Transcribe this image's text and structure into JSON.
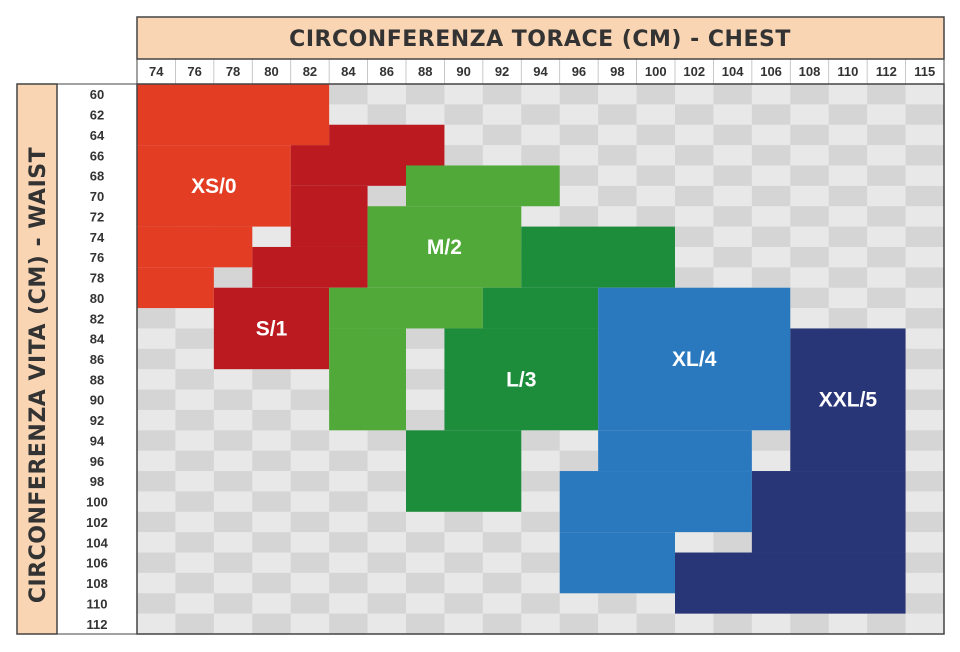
{
  "chart_data": {
    "type": "heatmap",
    "title": "",
    "xlabel": "CIRCONFERENZA TORACE (CM) - CHEST",
    "ylabel": "CIRCONFERENZA VITA (CM) - WAIST",
    "x_ticks": [
      "74",
      "76",
      "78",
      "80",
      "82",
      "84",
      "86",
      "88",
      "90",
      "92",
      "94",
      "96",
      "98",
      "100",
      "102",
      "104",
      "106",
      "108",
      "110",
      "112",
      "115"
    ],
    "y_ticks": [
      "60",
      "62",
      "64",
      "66",
      "68",
      "70",
      "72",
      "74",
      "76",
      "78",
      "80",
      "82",
      "84",
      "86",
      "88",
      "90",
      "92",
      "94",
      "96",
      "98",
      "100",
      "102",
      "104",
      "106",
      "108",
      "110",
      "112"
    ],
    "grid": true,
    "colors": {
      "header_bg": "#f9d5b3",
      "grid_light": "#e8e8e8",
      "grid_dark": "#d5d5d5",
      "border": "#444444"
    },
    "sizes": [
      {
        "name": "XS/0",
        "color": "#e33d24",
        "steps": [
          {
            "chest_from": "74",
            "chest_to": "84",
            "waist_from": "60",
            "waist_to": "66"
          },
          {
            "chest_from": "74",
            "chest_to": "82",
            "waist_from": "66",
            "waist_to": "74"
          },
          {
            "chest_from": "74",
            "chest_to": "80",
            "waist_from": "74",
            "waist_to": "78"
          },
          {
            "chest_from": "74",
            "chest_to": "78",
            "waist_from": "78",
            "waist_to": "82"
          }
        ]
      },
      {
        "name": "S/1",
        "color": "#bb1a21",
        "steps": [
          {
            "chest_from": "84",
            "chest_to": "90",
            "waist_from": "64",
            "waist_to": "68"
          },
          {
            "chest_from": "82",
            "chest_to": "88",
            "waist_from": "66",
            "waist_to": "70"
          },
          {
            "chest_from": "82",
            "chest_to": "86",
            "waist_from": "70",
            "waist_to": "76"
          },
          {
            "chest_from": "80",
            "chest_to": "86",
            "waist_from": "76",
            "waist_to": "80"
          },
          {
            "chest_from": "78",
            "chest_to": "84",
            "waist_from": "80",
            "waist_to": "88"
          }
        ]
      },
      {
        "name": "M/2",
        "color": "#50a938",
        "steps": [
          {
            "chest_from": "88",
            "chest_to": "96",
            "waist_from": "68",
            "waist_to": "72"
          },
          {
            "chest_from": "86",
            "chest_to": "94",
            "waist_from": "72",
            "waist_to": "80"
          },
          {
            "chest_from": "84",
            "chest_to": "92",
            "waist_from": "80",
            "waist_to": "84"
          },
          {
            "chest_from": "84",
            "chest_to": "88",
            "waist_from": "84",
            "waist_to": "94"
          }
        ]
      },
      {
        "name": "L/3",
        "color": "#1d8c3b",
        "steps": [
          {
            "chest_from": "94",
            "chest_to": "102",
            "waist_from": "74",
            "waist_to": "80"
          },
          {
            "chest_from": "92",
            "chest_to": "98",
            "waist_from": "80",
            "waist_to": "84"
          },
          {
            "chest_from": "90",
            "chest_to": "98",
            "waist_from": "84",
            "waist_to": "94"
          },
          {
            "chest_from": "88",
            "chest_to": "94",
            "waist_from": "94",
            "waist_to": "102"
          }
        ]
      },
      {
        "name": "XL/4",
        "color": "#2a79bf",
        "steps": [
          {
            "chest_from": "98",
            "chest_to": "108",
            "waist_from": "80",
            "waist_to": "94"
          },
          {
            "chest_from": "98",
            "chest_to": "106",
            "waist_from": "94",
            "waist_to": "98"
          },
          {
            "chest_from": "96",
            "chest_to": "106",
            "waist_from": "98",
            "waist_to": "104"
          },
          {
            "chest_from": "96",
            "chest_to": "102",
            "waist_from": "104",
            "waist_to": "110"
          }
        ]
      },
      {
        "name": "XXL/5",
        "color": "#283577",
        "steps": [
          {
            "chest_from": "108",
            "chest_to": "115",
            "waist_from": "84",
            "waist_to": "98"
          },
          {
            "chest_from": "106",
            "chest_to": "115",
            "waist_from": "98",
            "waist_to": "106"
          },
          {
            "chest_from": "102",
            "chest_to": "115",
            "waist_from": "106",
            "waist_to": "112"
          }
        ]
      }
    ]
  }
}
